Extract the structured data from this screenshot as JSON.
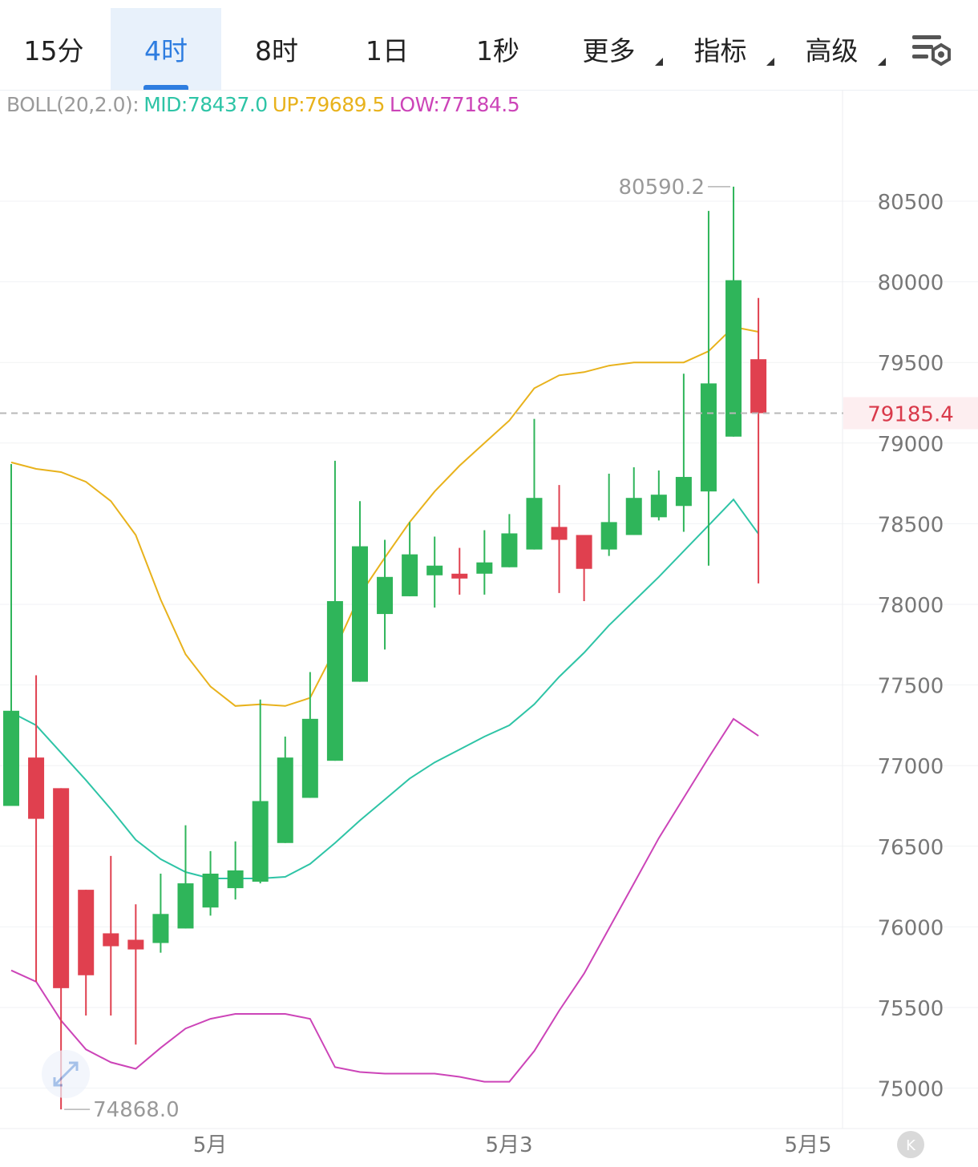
{
  "tabs": [
    {
      "label": "15分",
      "active": false,
      "dropdown": false
    },
    {
      "label": "4时",
      "active": true,
      "dropdown": false
    },
    {
      "label": "8时",
      "active": false,
      "dropdown": false
    },
    {
      "label": "1日",
      "active": false,
      "dropdown": false
    },
    {
      "label": "1秒",
      "active": false,
      "dropdown": false
    },
    {
      "label": "更多",
      "active": false,
      "dropdown": true
    },
    {
      "label": "指标",
      "active": false,
      "dropdown": true
    },
    {
      "label": "高级",
      "active": false,
      "dropdown": true
    }
  ],
  "settings_icon": "chart-settings-icon",
  "indicator": {
    "name": "BOLL(20,2.0):",
    "mid": "MID:78437.0",
    "up": "UP:79689.5",
    "low": "LOW:77184.5",
    "colors": {
      "name": "#9a9a9a",
      "mid": "#2ec4a6",
      "up": "#e8b21c",
      "low": "#cc44b8"
    }
  },
  "chart_data": {
    "type": "candlestick",
    "y_ticks": [
      80500,
      80000,
      79500,
      79000,
      78500,
      78000,
      77500,
      77000,
      76500,
      76000,
      75500,
      75000
    ],
    "y_tick_labels": [
      "80500",
      "80000",
      "79500",
      "79000",
      "78500",
      "78000",
      "77500",
      "77000",
      "76500",
      "76000",
      "75500",
      "75000"
    ],
    "x_labels": [
      "5月",
      "5月3",
      "5月5"
    ],
    "current_price": "79185.4",
    "high_label": "80590.2",
    "low_label": "74868.0",
    "up_color": "#2fb55a",
    "down_color": "#e0404f",
    "candles": [
      {
        "o": 76750,
        "h": 78870,
        "l": 76750,
        "c": 77340
      },
      {
        "o": 77050,
        "h": 77560,
        "l": 75660,
        "c": 76670
      },
      {
        "o": 76860,
        "h": 76860,
        "l": 74868,
        "c": 75620
      },
      {
        "o": 76230,
        "h": 76230,
        "l": 75450,
        "c": 75700
      },
      {
        "o": 75960,
        "h": 76440,
        "l": 75450,
        "c": 75880
      },
      {
        "o": 75920,
        "h": 76140,
        "l": 75270,
        "c": 75860
      },
      {
        "o": 75900,
        "h": 76330,
        "l": 75840,
        "c": 76080
      },
      {
        "o": 75990,
        "h": 76630,
        "l": 75990,
        "c": 76270
      },
      {
        "o": 76120,
        "h": 76470,
        "l": 76070,
        "c": 76330
      },
      {
        "o": 76240,
        "h": 76530,
        "l": 76170,
        "c": 76350
      },
      {
        "o": 76280,
        "h": 77410,
        "l": 76270,
        "c": 76780
      },
      {
        "o": 76520,
        "h": 77180,
        "l": 76520,
        "c": 77050
      },
      {
        "o": 76800,
        "h": 77580,
        "l": 76800,
        "c": 77290
      },
      {
        "o": 77030,
        "h": 78890,
        "l": 77030,
        "c": 78020
      },
      {
        "o": 77520,
        "h": 78640,
        "l": 77520,
        "c": 78360
      },
      {
        "o": 77940,
        "h": 78400,
        "l": 77720,
        "c": 78170
      },
      {
        "o": 78050,
        "h": 78510,
        "l": 78050,
        "c": 78310
      },
      {
        "o": 78180,
        "h": 78420,
        "l": 77980,
        "c": 78240
      },
      {
        "o": 78190,
        "h": 78350,
        "l": 78060,
        "c": 78160
      },
      {
        "o": 78190,
        "h": 78460,
        "l": 78060,
        "c": 78260
      },
      {
        "o": 78230,
        "h": 78560,
        "l": 78230,
        "c": 78440
      },
      {
        "o": 78340,
        "h": 79150,
        "l": 78340,
        "c": 78660
      },
      {
        "o": 78480,
        "h": 78740,
        "l": 78070,
        "c": 78400
      },
      {
        "o": 78430,
        "h": 78430,
        "l": 78020,
        "c": 78220
      },
      {
        "o": 78340,
        "h": 78810,
        "l": 78300,
        "c": 78510
      },
      {
        "o": 78430,
        "h": 78850,
        "l": 78430,
        "c": 78660
      },
      {
        "o": 78540,
        "h": 78830,
        "l": 78520,
        "c": 78680
      },
      {
        "o": 78610,
        "h": 79430,
        "l": 78450,
        "c": 78790
      },
      {
        "o": 78700,
        "h": 80440,
        "l": 78240,
        "c": 79370
      },
      {
        "o": 79040,
        "h": 80590.2,
        "l": 79040,
        "c": 80010
      },
      {
        "o": 79520,
        "h": 79900,
        "l": 78130,
        "c": 79185.4
      }
    ],
    "boll": {
      "up": [
        78880,
        78840,
        78820,
        78760,
        78640,
        78430,
        78030,
        77690,
        77490,
        77370,
        77380,
        77370,
        77420,
        77720,
        78060,
        78290,
        78510,
        78700,
        78860,
        79000,
        79140,
        79340,
        79420,
        79440,
        79480,
        79500,
        79500,
        79500,
        79570,
        79720,
        79690
      ],
      "mid": [
        77330,
        77250,
        77080,
        76910,
        76730,
        76540,
        76420,
        76340,
        76300,
        76300,
        76300,
        76310,
        76390,
        76520,
        76660,
        76790,
        76920,
        77020,
        77100,
        77180,
        77250,
        77380,
        77550,
        77700,
        77870,
        78020,
        78170,
        78330,
        78490,
        78650,
        78437
      ],
      "low": [
        75730,
        75660,
        75420,
        75240,
        75160,
        75120,
        75250,
        75370,
        75430,
        75460,
        75460,
        75460,
        75430,
        75130,
        75100,
        75090,
        75090,
        75090,
        75070,
        75040,
        75040,
        75230,
        75480,
        75710,
        75990,
        76270,
        76550,
        76800,
        77050,
        77290,
        77184.5
      ]
    }
  }
}
